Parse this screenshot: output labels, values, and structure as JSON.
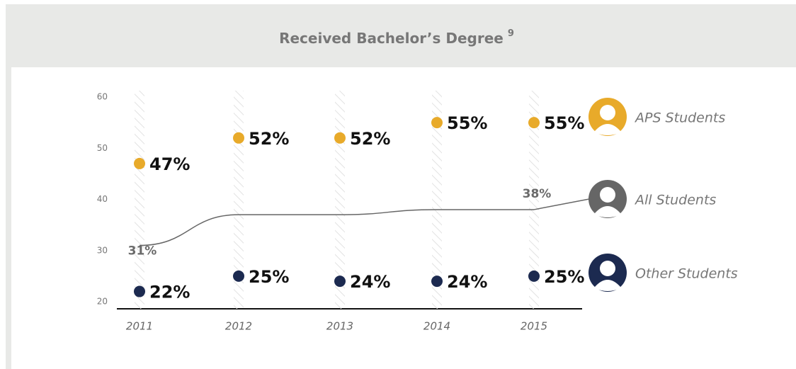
{
  "chart_data": {
    "type": "dot-line",
    "title": "Received Bachelor’s Degree",
    "title_note": "9",
    "categories": [
      "2011",
      "2012",
      "2013",
      "2014",
      "2015"
    ],
    "series": [
      {
        "name": "APS Students",
        "color": "#e8aa2a",
        "style": "dots",
        "values": [
          47,
          52,
          52,
          55,
          55
        ],
        "value_labels": [
          "47%",
          "52%",
          "52%",
          "55%",
          "55%"
        ]
      },
      {
        "name": "All Students",
        "color": "#666666",
        "style": "line",
        "values": [
          31,
          37,
          37,
          38,
          38
        ],
        "value_labels": [
          "31%",
          null,
          null,
          null,
          "38%"
        ]
      },
      {
        "name": "Other Students",
        "color": "#1c2a50",
        "style": "dots",
        "values": [
          22,
          25,
          24,
          24,
          25
        ],
        "value_labels": [
          "22%",
          "25%",
          "24%",
          "24%",
          "25%"
        ]
      }
    ],
    "ylim": [
      20,
      60
    ],
    "yticks": [
      20,
      30,
      40,
      50,
      60
    ]
  }
}
